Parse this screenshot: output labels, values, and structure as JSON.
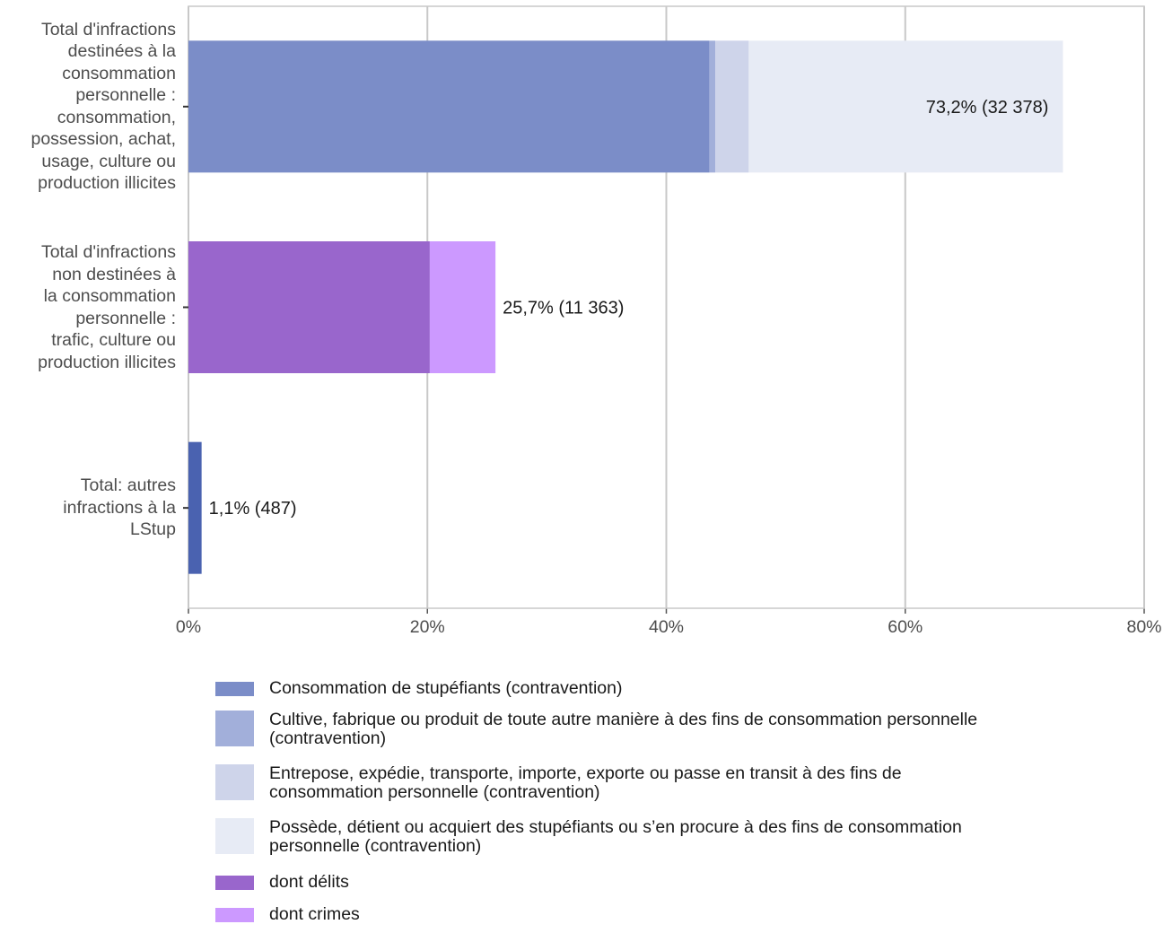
{
  "chart_data": {
    "type": "bar",
    "orientation": "horizontal",
    "stacked": true,
    "grid": true,
    "legend_position": "bottom",
    "xlim": [
      0,
      80
    ],
    "x_ticks": [
      "0%",
      "20%",
      "40%",
      "60%",
      "80%"
    ],
    "categories": [
      {
        "lines": [
          "Total d'infractions",
          "destinées à la",
          "consommation",
          "personnelle :",
          "consommation,",
          "possession, achat,",
          "usage, culture ou",
          "production illicites"
        ],
        "segments": [
          {
            "series": "Consommation de stupéfiants (contravention)",
            "value": 43.6
          },
          {
            "series": "Cultive, fabrique ou produit de toute autre manière à des fins de consommation personnelle (contravention)",
            "value": 0.5
          },
          {
            "series": "Entrepose, expédie, transporte, importe, exporte ou passe en transit à des fins de consommation personnelle (contravention)",
            "value": 2.8
          },
          {
            "series": "Possède, détient ou acquiert des stupéfiants ou s’en procure à des fins de consommation personnelle (contravention)",
            "value": 26.3
          }
        ],
        "total": 73.2,
        "label": "73,2% (32 378)",
        "label_inside": true
      },
      {
        "lines": [
          "Total d'infractions",
          "non destinées à",
          "la consommation",
          "personnelle :",
          "trafic, culture ou",
          "production illicites"
        ],
        "segments": [
          {
            "series": "dont délits",
            "value": 20.2
          },
          {
            "series": "dont crimes",
            "value": 5.5
          }
        ],
        "total": 25.7,
        "label": "25,7% (11 363)",
        "label_inside": false
      },
      {
        "lines": [
          "Total: autres",
          "infractions à la",
          "LStup"
        ],
        "segments": [
          {
            "series": "Total: autres infractions à la LStup",
            "value": 1.1
          }
        ],
        "total": 1.1,
        "label": "1,1% (487)",
        "label_inside": false
      }
    ],
    "series_colors": {
      "Consommation de stupéfiants (contravention)": "#7b8dc8",
      "Cultive, fabrique ou produit de toute autre manière à des fins de consommation personnelle (contravention)": "#a2afda",
      "Entrepose, expédie, transporte, importe, exporte ou passe en transit à des fins de consommation personnelle (contravention)": "#ced4ea",
      "Possède, détient ou acquiert des stupéfiants ou s’en procure à des fins de consommation personnelle (contravention)": "#e7ebf5",
      "dont délits": "#9966cc",
      "dont crimes": "#cc99ff",
      "Total: autres infractions à la LStup": "#4a62b0"
    },
    "legend": [
      {
        "lines": [
          "Consommation de stupéfiants (contravention)"
        ],
        "color": "#7b8dc8"
      },
      {
        "lines": [
          "Cultive, fabrique ou produit de toute autre manière à des fins de consommation personnelle",
          "(contravention)"
        ],
        "color": "#a2afda"
      },
      {
        "lines": [
          "Entrepose, expédie, transporte, importe, exporte ou passe en transit à des fins de",
          "consommation personnelle (contravention)"
        ],
        "color": "#ced4ea"
      },
      {
        "lines": [
          "Possède, détient ou acquiert des stupéfiants ou s’en procure à des fins de consommation",
          "personnelle (contravention)"
        ],
        "color": "#e7ebf5"
      },
      {
        "lines": [
          "dont délits"
        ],
        "color": "#9966cc"
      },
      {
        "lines": [
          "dont crimes"
        ],
        "color": "#cc99ff"
      }
    ]
  }
}
